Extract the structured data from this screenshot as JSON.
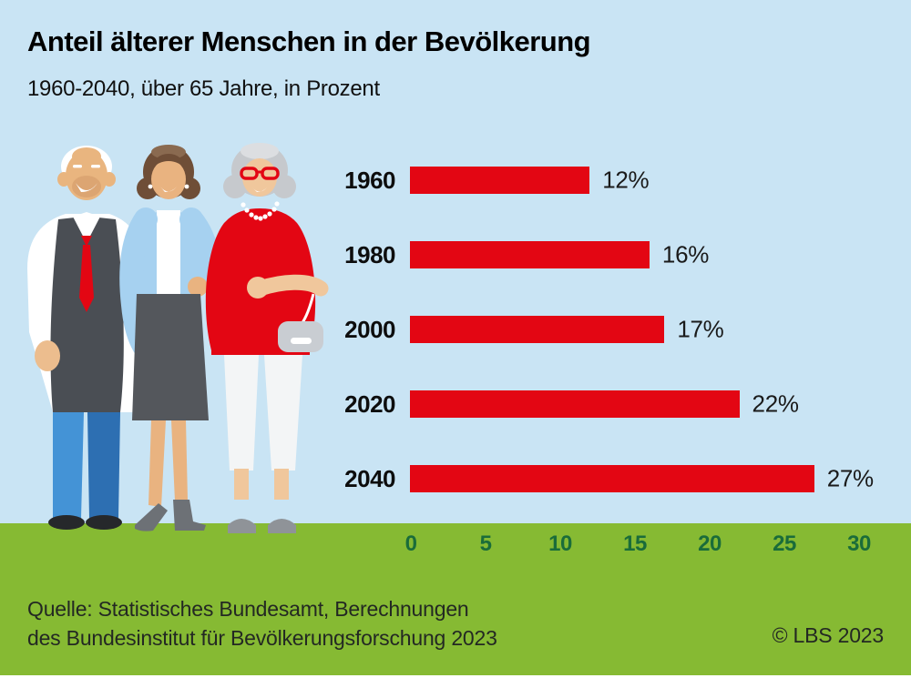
{
  "title": "Anteil älterer Menschen in der Bevölkerung",
  "subtitle": "1960-2040, über 65 Jahre, in Prozent",
  "chart_data": {
    "type": "bar",
    "orientation": "horizontal",
    "title": "Anteil älterer Menschen in der Bevölkerung",
    "subtitle": "1960-2040, über 65 Jahre, in Prozent",
    "categories": [
      "1960",
      "1980",
      "2000",
      "2020",
      "2040"
    ],
    "values": [
      12,
      16,
      17,
      22,
      27
    ],
    "value_labels": [
      "12%",
      "16%",
      "17%",
      "22%",
      "27%"
    ],
    "unit": "percent",
    "xlim": [
      0,
      30
    ],
    "x_ticks": [
      "0",
      "5",
      "10",
      "15",
      "20",
      "25",
      "30"
    ],
    "grid": false,
    "legend": "none",
    "bar_color": "#e30613"
  },
  "illustration_label": "three-elderly-people-illustration",
  "footer": {
    "source_line1": "Quelle: Statistisches Bundesamt, Berechnungen",
    "source_line2": "des Bundesinstitut für Bevölkerungsforschung 2023",
    "copyright": "© LBS 2023"
  },
  "colors": {
    "background": "#c9e4f4",
    "ground": "#86ba33",
    "bar": "#e30613",
    "axis_text": "#1a6c3a"
  }
}
